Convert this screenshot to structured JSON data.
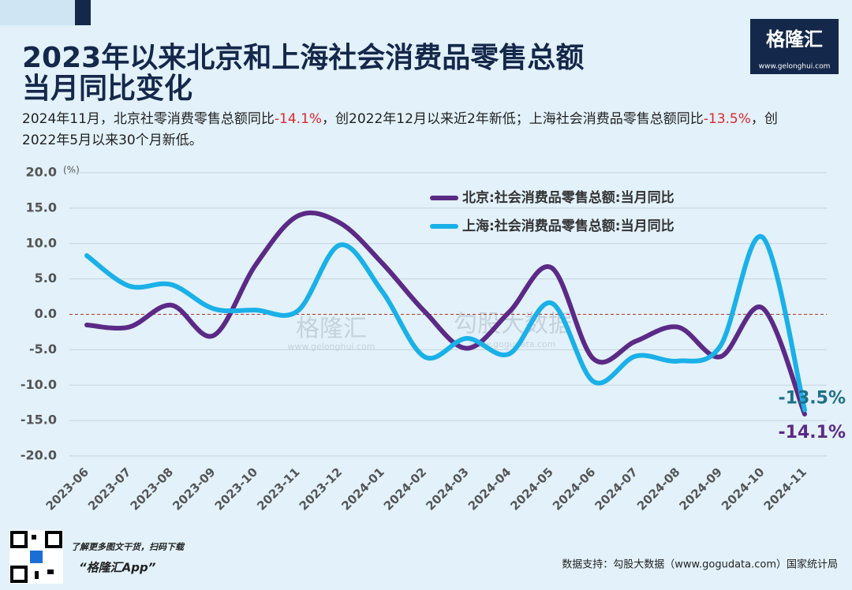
{
  "chart_data": {
    "type": "line",
    "title_lines": [
      "2023年以来北京和上海社会消费品零售总额",
      "当月同比变化"
    ],
    "subtitle": [
      {
        "text": "2024年11月，北京社零消费零售总额同比"
      },
      {
        "text": "-14.1%",
        "highlight": true
      },
      {
        "text": "，创2022年12月以来近2年新低；上海社会消费品零售总额同比"
      },
      {
        "text": "-13.5%",
        "highlight": true
      },
      {
        "text": "，创2022年5月以来30个月新低。"
      }
    ],
    "highlight_color": "#e0262b",
    "y_unit": "(%)",
    "categories": [
      "2023-06",
      "2023-07",
      "2023-08",
      "2023-09",
      "2023-10",
      "2023-11",
      "2023-12",
      "2024-01",
      "2024-02",
      "2024-03",
      "2024-04",
      "2024-05",
      "2024-06",
      "2024-07",
      "2024-08",
      "2024-09",
      "2024-10",
      "2024-11"
    ],
    "series": [
      {
        "name": "北京:社会消费品零售总额:当月同比",
        "color": "#5b2a86",
        "values": [
          -1.5,
          -1.8,
          1.3,
          -3.0,
          7.0,
          13.9,
          12.9,
          7.2,
          0.4,
          -4.8,
          0.3,
          6.6,
          -6.3,
          -3.8,
          -1.8,
          -6.0,
          0.9,
          -14.1
        ],
        "end_label": "-14.1%",
        "end_label_color": "#5b2a86"
      },
      {
        "name": "上海:社会消费品零售总额:当月同比",
        "color": "#1ab0e8",
        "values": [
          8.3,
          4.0,
          4.2,
          0.8,
          0.6,
          0.5,
          9.8,
          3.2,
          -6.0,
          -3.4,
          -5.6,
          1.6,
          -9.5,
          -5.9,
          -6.6,
          -4.5,
          10.9,
          -13.5
        ],
        "end_label": "-13.5%",
        "end_label_color": "#1f7089"
      }
    ],
    "ylim": [
      -20,
      20
    ],
    "yticks": [
      {
        "value": -20,
        "label": "-20.0"
      },
      {
        "value": -15,
        "label": "-15.0"
      },
      {
        "value": -10,
        "label": "-10.0"
      },
      {
        "value": -5,
        "label": "-5.0"
      },
      {
        "value": 0,
        "label": "0.0"
      },
      {
        "value": 5,
        "label": "5.0"
      },
      {
        "value": 10,
        "label": "10.0"
      },
      {
        "value": 15,
        "label": "15.0"
      },
      {
        "value": 20,
        "label": "20.0"
      }
    ],
    "grid": true,
    "zero_line_color": "#c0302f",
    "legend": "top-right",
    "smooth": true
  },
  "branding": {
    "logo": "格隆汇",
    "logo_url": "www.gelonghui.com",
    "watermark": [
      "格隆汇",
      "www.gelonghui.com",
      "勾股大数据",
      "www.gogudata.com"
    ],
    "footer_left": [
      "了解更多图文干货，扫码下载",
      "“格隆汇App”"
    ],
    "source": "数据支持：勾股大数据（www.gogudata.com）国家统计局"
  }
}
